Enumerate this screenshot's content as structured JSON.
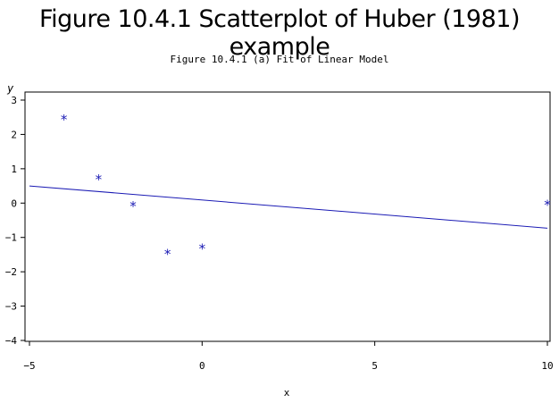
{
  "figure": {
    "title": "Figure 10.4.1 Scatterplot of Huber (1981) example"
  },
  "chart_data": {
    "type": "scatter",
    "title": "Figure 10.4.1 (a) Fit of Linear Model",
    "xlabel": "x",
    "ylabel": "y",
    "xlim": [
      -5,
      10
    ],
    "ylim": [
      -4,
      3
    ],
    "xticks": [
      -5,
      0,
      5,
      10
    ],
    "yticks": [
      -4,
      -3,
      -2,
      -1,
      0,
      1,
      2,
      3
    ],
    "grid": false,
    "marker": "*",
    "point_color": "#1a1ab4",
    "line_color": "#1a1ab4",
    "series": [
      {
        "x": [
          -4,
          -3,
          -2,
          -1,
          0,
          10
        ],
        "y": [
          2.48,
          0.73,
          -0.04,
          -1.44,
          -1.28,
          0.0
        ]
      }
    ],
    "fit_line": {
      "x": [
        -5,
        10
      ],
      "y": [
        0.5,
        -0.73
      ]
    }
  }
}
